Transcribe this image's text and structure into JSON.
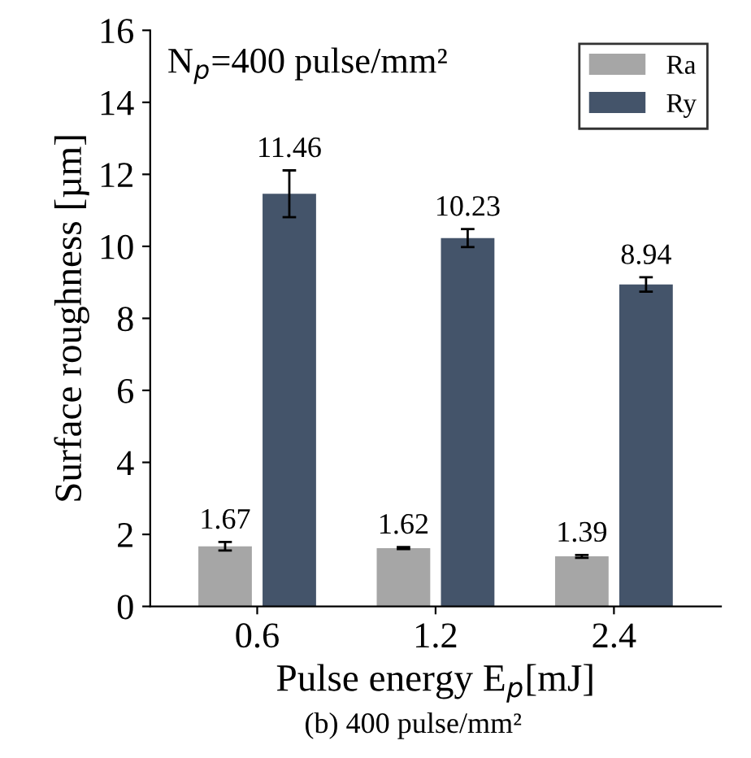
{
  "chart_data": {
    "type": "bar",
    "xlabel": "Pulse energy E$_{p}$[mJ]",
    "ylabel": "Surface roughness [µm]",
    "categories": [
      "0.6",
      "1.2",
      "2.4"
    ],
    "series": [
      {
        "name": "Ra",
        "color": "#a6a6a6",
        "values": [
          1.67,
          1.62,
          1.39
        ],
        "errors": [
          0.12,
          0.03,
          0.04
        ]
      },
      {
        "name": "Ry",
        "color": "#44546a",
        "values": [
          11.46,
          10.23,
          8.94
        ],
        "errors": [
          0.65,
          0.25,
          0.2
        ]
      }
    ],
    "ylim": [
      0,
      16
    ],
    "yticks": [
      0,
      2,
      4,
      6,
      8,
      10,
      12,
      14,
      16
    ],
    "data_labels": true,
    "legend": "top right",
    "grid": false,
    "annotations": [
      "N$_{p}$=400 pulse/mm²",
      "(b) 400 pulse/mm²"
    ]
  }
}
